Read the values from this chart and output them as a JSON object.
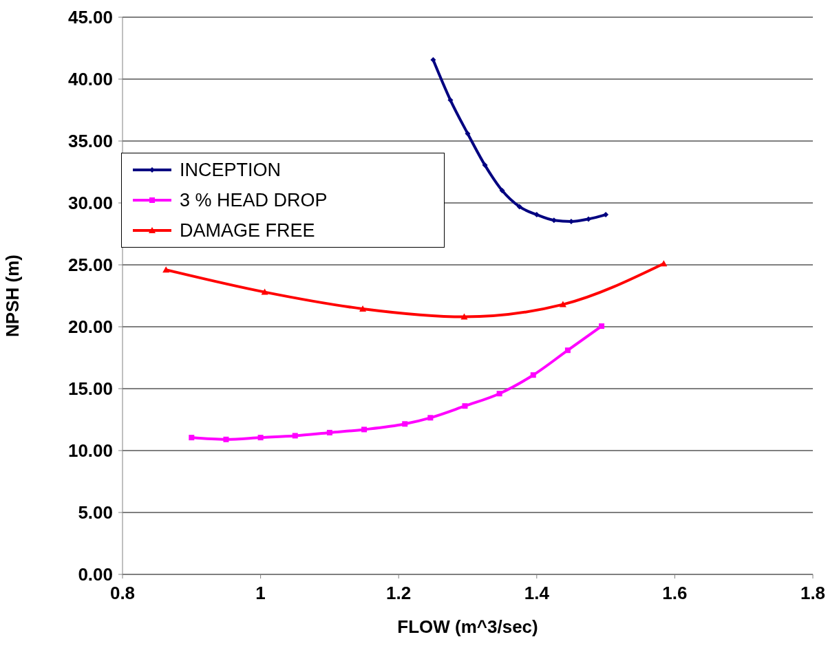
{
  "chart_data": {
    "type": "line",
    "xlabel": "FLOW (m^3/sec)",
    "ylabel": "NPSH (m)",
    "xlim": [
      0.8,
      1.8
    ],
    "xticks": [
      0.8,
      1,
      1.2,
      1.4,
      1.6,
      1.8
    ],
    "ylim": [
      0,
      45
    ],
    "yticks": [
      {
        "value": 0,
        "label": "0.00"
      },
      {
        "value": 5,
        "label": "5.00"
      },
      {
        "value": 10,
        "label": "10.00"
      },
      {
        "value": 15,
        "label": "15.00"
      },
      {
        "value": 20,
        "label": "20.00"
      },
      {
        "value": 25,
        "label": "25.00"
      },
      {
        "value": 30,
        "label": "30.00"
      },
      {
        "value": 35,
        "label": "35.00"
      },
      {
        "value": 40,
        "label": "40.00"
      },
      {
        "value": 45,
        "label": "45.00"
      }
    ],
    "grid": "y",
    "legend": "top left",
    "line_style": "solid",
    "series": [
      {
        "name": "INCEPTION",
        "color": "#000080",
        "marker": "diamond",
        "x": [
          1.25,
          1.275,
          1.3,
          1.325,
          1.35,
          1.375,
          1.4,
          1.425,
          1.45,
          1.475,
          1.5
        ],
        "values": [
          41.55,
          38.3,
          35.6,
          33.05,
          31.0,
          29.7,
          29.05,
          28.6,
          28.5,
          28.7,
          29.05
        ]
      },
      {
        "name": "3 % HEAD DROP",
        "color": "#ff00ff",
        "marker": "square",
        "x": [
          0.9,
          0.95,
          1.0,
          1.05,
          1.1,
          1.15,
          1.209,
          1.246,
          1.296,
          1.346,
          1.395,
          1.445,
          1.494
        ],
        "values": [
          11.05,
          10.9,
          11.05,
          11.2,
          11.45,
          11.7,
          12.15,
          12.65,
          13.6,
          14.6,
          16.1,
          18.1,
          20.05
        ]
      },
      {
        "name": "DAMAGE FREE",
        "color": "#ff0000",
        "marker": "triangle",
        "x": [
          0.863,
          1.006,
          1.148,
          1.295,
          1.438,
          1.584
        ],
        "values": [
          24.6,
          22.8,
          21.45,
          20.8,
          21.8,
          25.1
        ]
      }
    ]
  }
}
